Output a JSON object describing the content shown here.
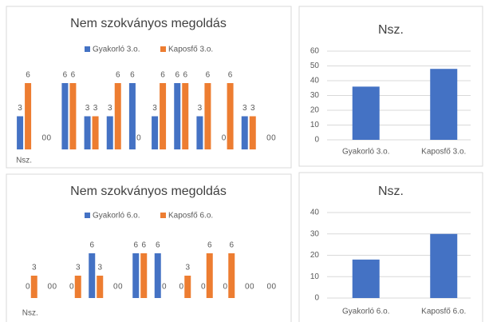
{
  "chart_data": [
    {
      "type": "bar",
      "title": "Nem szokványos megoldás",
      "legend": "top",
      "categories": [
        "Nsz.",
        null,
        null,
        null,
        null,
        null,
        null,
        null,
        null,
        null,
        null,
        null
      ],
      "series": [
        {
          "name": "Gyakorló 3.o.",
          "color": "#4472c4",
          "values": [
            3,
            0,
            6,
            3,
            3,
            6,
            3,
            6,
            3,
            0,
            3,
            0
          ]
        },
        {
          "name": "Kaposfő 3.o.",
          "color": "#ed7d31",
          "values": [
            6,
            0,
            6,
            3,
            6,
            0,
            6,
            6,
            6,
            6,
            3,
            0
          ]
        }
      ]
    },
    {
      "type": "bar",
      "title": "Nsz.",
      "categories": [
        "Gyakorló 3.o.",
        "Kaposfő 3.o."
      ],
      "values": [
        36,
        48
      ],
      "color": "#4472c4",
      "ylim": [
        0,
        60
      ],
      "yticks": [
        0,
        10,
        20,
        30,
        40,
        50,
        60
      ],
      "grid": true
    },
    {
      "type": "bar",
      "title": "Nem szokványos megoldás",
      "legend": "top",
      "categories": [
        "Nsz.",
        null,
        null,
        null,
        null,
        null,
        null,
        null,
        null,
        null,
        null,
        null
      ],
      "series": [
        {
          "name": "Gyakorló 6.o.",
          "color": "#4472c4",
          "values": [
            0,
            0,
            0,
            6,
            0,
            6,
            6,
            0,
            0,
            0,
            0,
            0
          ]
        },
        {
          "name": "Kaposfő 6.o.",
          "color": "#ed7d31",
          "values": [
            3,
            0,
            3,
            3,
            0,
            6,
            0,
            3,
            6,
            6,
            0,
            0
          ]
        }
      ]
    },
    {
      "type": "bar",
      "title": "Nsz.",
      "categories": [
        "Gyakorló 6.o.",
        "Kaposfő 6.o."
      ],
      "values": [
        18,
        30
      ],
      "color": "#4472c4",
      "ylim": [
        0,
        40
      ],
      "yticks": [
        0,
        10,
        20,
        30,
        40
      ],
      "grid": true
    }
  ]
}
